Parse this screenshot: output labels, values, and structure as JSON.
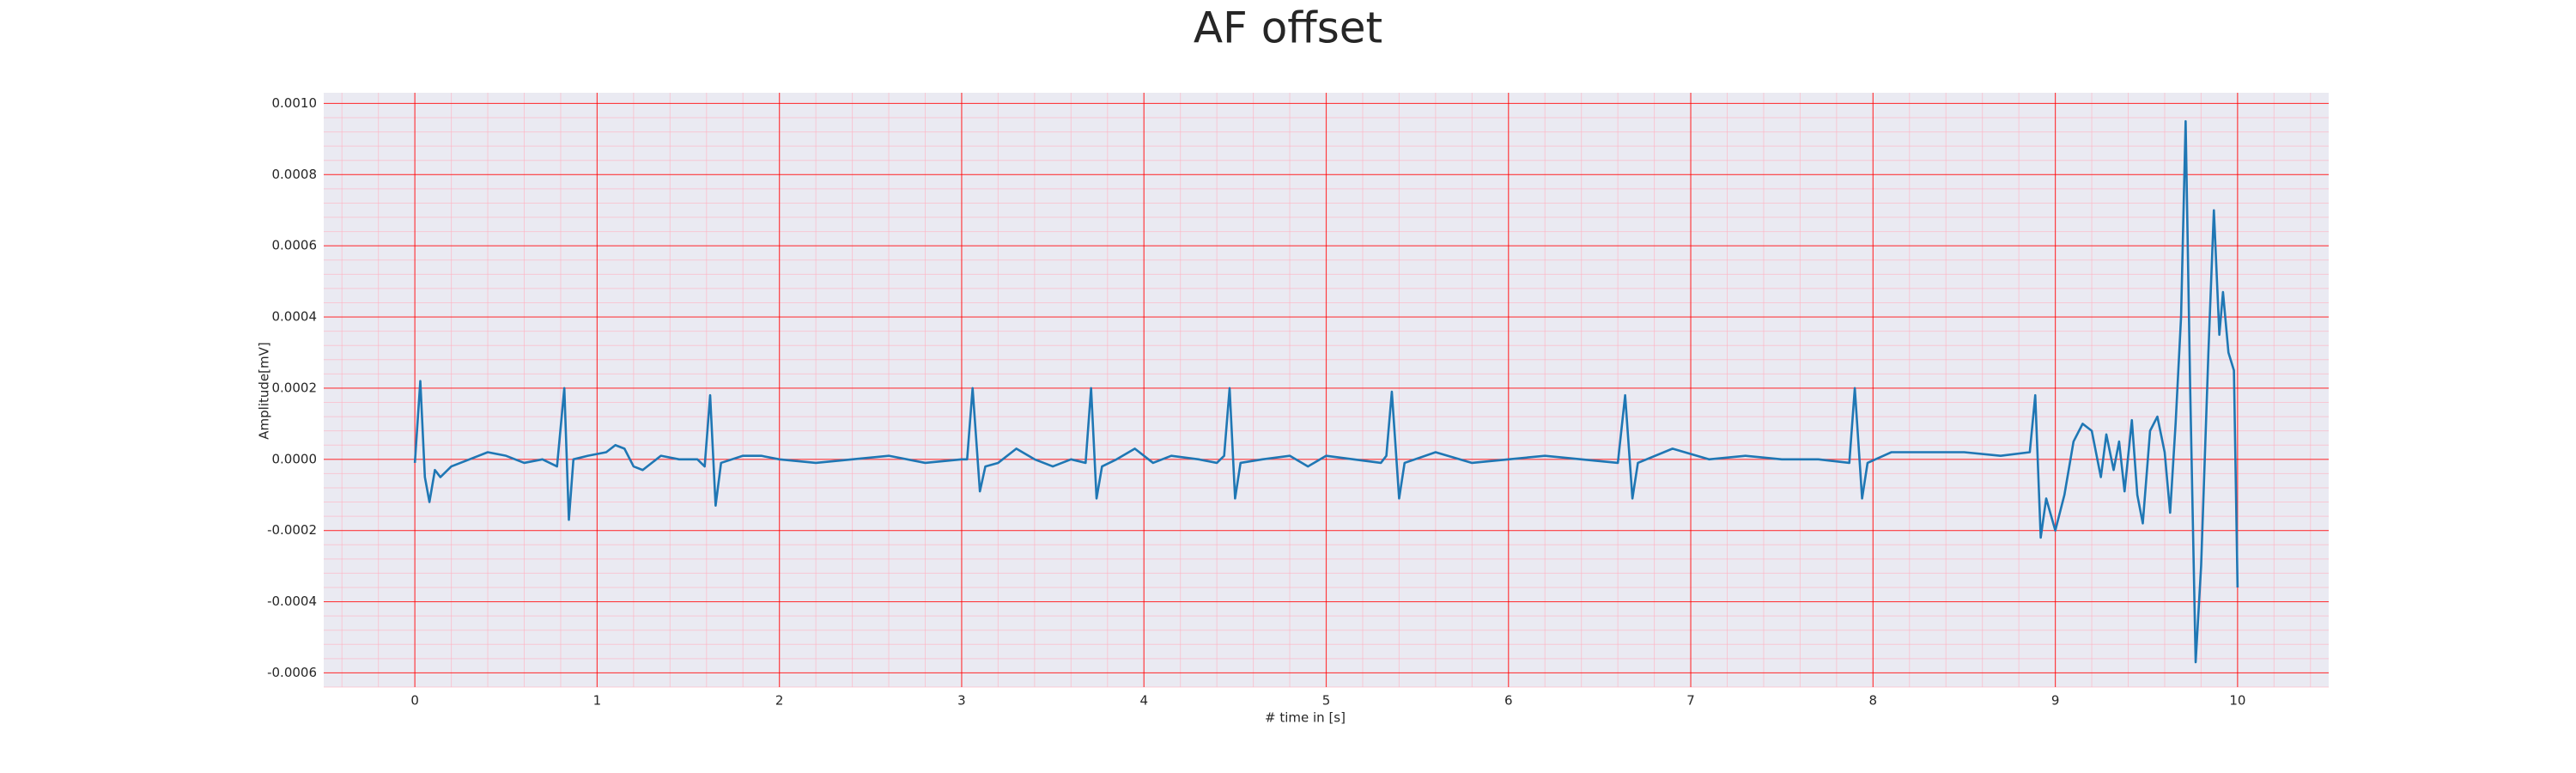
{
  "chart_data": {
    "type": "line",
    "title": "AF offset",
    "xlabel": "# time in [s]",
    "ylabel": "Amplitude[mV]",
    "xlim": [
      -0.5,
      10.5
    ],
    "ylim": [
      -0.00064,
      0.00103
    ],
    "xticks": [
      0,
      1,
      2,
      3,
      4,
      5,
      6,
      7,
      8,
      9,
      10
    ],
    "yticks": [
      {
        "value": -0.0006,
        "label": "-0.0006"
      },
      {
        "value": -0.0004,
        "label": "-0.0004"
      },
      {
        "value": -0.0002,
        "label": "-0.0002"
      },
      {
        "value": 0,
        "label": "0.0000"
      },
      {
        "value": 0.0002,
        "label": "0.0002"
      },
      {
        "value": 0.0004,
        "label": "0.0004"
      },
      {
        "value": 0.0006,
        "label": "0.0006"
      },
      {
        "value": 0.0008,
        "label": "0.0008"
      },
      {
        "value": 0.001,
        "label": "0.0010"
      }
    ],
    "grid": true,
    "grid_color": "#ff0000",
    "minor_grid": true,
    "minor_grid_color": "#ffb0c0",
    "xminor_step": 0.2,
    "yminor_step": 4e-05,
    "background": "#eaeaf2",
    "series": [
      {
        "color": "#1f77b4",
        "x": [
          0,
          0.03,
          0.055,
          0.08,
          0.11,
          0.14,
          0.2,
          0.3,
          0.4,
          0.5,
          0.6,
          0.7,
          0.78,
          0.82,
          0.845,
          0.87,
          0.95,
          1.05,
          1.1,
          1.15,
          1.2,
          1.25,
          1.35,
          1.45,
          1.55,
          1.59,
          1.62,
          1.65,
          1.68,
          1.8,
          1.9,
          2.0,
          2.2,
          2.4,
          2.6,
          2.8,
          3.0,
          3.03,
          3.06,
          3.1,
          3.13,
          3.2,
          3.3,
          3.4,
          3.5,
          3.6,
          3.68,
          3.71,
          3.74,
          3.77,
          3.85,
          3.95,
          4.05,
          4.15,
          4.3,
          4.4,
          4.44,
          4.47,
          4.5,
          4.53,
          4.65,
          4.8,
          4.9,
          5.0,
          5.15,
          5.3,
          5.33,
          5.36,
          5.4,
          5.43,
          5.6,
          5.8,
          6.0,
          6.2,
          6.4,
          6.6,
          6.64,
          6.68,
          6.71,
          6.9,
          7.1,
          7.3,
          7.5,
          7.7,
          7.87,
          7.9,
          7.94,
          7.97,
          8.1,
          8.3,
          8.5,
          8.7,
          8.86,
          8.89,
          8.92,
          8.95,
          9.0,
          9.05,
          9.1,
          9.15,
          9.2,
          9.25,
          9.28,
          9.32,
          9.35,
          9.38,
          9.42,
          9.45,
          9.48,
          9.52,
          9.56,
          9.6,
          9.63,
          9.66,
          9.69,
          9.715,
          9.74,
          9.77,
          9.8,
          9.84,
          9.87,
          9.9,
          9.92,
          9.95,
          9.98,
          10.0
        ],
        "values": [
          -1e-05,
          0.00022,
          -5e-05,
          -0.00012,
          -3e-05,
          -5e-05,
          -2e-05,
          0,
          2e-05,
          1e-05,
          -1e-05,
          0,
          -2e-05,
          0.0002,
          -0.00017,
          0,
          1e-05,
          2e-05,
          4e-05,
          3e-05,
          -2e-05,
          -3e-05,
          1e-05,
          0,
          0,
          -2e-05,
          0.00018,
          -0.00013,
          -1e-05,
          1e-05,
          1e-05,
          0,
          -1e-05,
          0,
          1e-05,
          -1e-05,
          0,
          0,
          0.0002,
          -9e-05,
          -2e-05,
          -1e-05,
          3e-05,
          0,
          -2e-05,
          0,
          -1e-05,
          0.0002,
          -0.00011,
          -2e-05,
          0,
          3e-05,
          -1e-05,
          1e-05,
          0,
          -1e-05,
          1e-05,
          0.0002,
          -0.00011,
          -1e-05,
          0,
          1e-05,
          -2e-05,
          1e-05,
          0,
          -1e-05,
          1e-05,
          0.00019,
          -0.00011,
          -1e-05,
          2e-05,
          -1e-05,
          0,
          1e-05,
          0,
          -1e-05,
          0.00018,
          -0.00011,
          -1e-05,
          3e-05,
          0,
          1e-05,
          0,
          0,
          -1e-05,
          0.0002,
          -0.00011,
          -1e-05,
          2e-05,
          2e-05,
          2e-05,
          1e-05,
          2e-05,
          0.00018,
          -0.00022,
          -0.00011,
          -0.0002,
          -0.0001,
          5e-05,
          0.0001,
          8e-05,
          -5e-05,
          7e-05,
          -3e-05,
          5e-05,
          -9e-05,
          0.00011,
          -0.0001,
          -0.00018,
          8e-05,
          0.00012,
          2e-05,
          -0.00015,
          0.0001,
          0.0004,
          0.00095,
          0.0002,
          -0.00057,
          -0.0003,
          0.0003,
          0.0007,
          0.00035,
          0.00047,
          0.0003,
          0.00025,
          -0.00036
        ]
      }
    ]
  }
}
